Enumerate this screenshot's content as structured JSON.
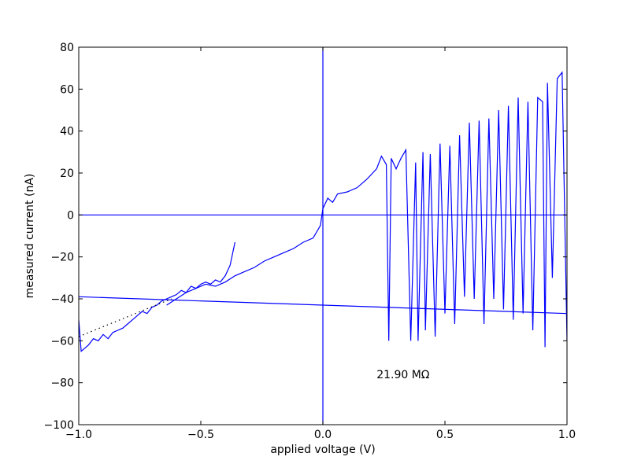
{
  "chart_data": {
    "type": "line",
    "xlabel": "applied voltage (V)",
    "ylabel": "measured current (nA)",
    "xlim": [
      -1,
      1
    ],
    "ylim": [
      -100,
      80
    ],
    "xticks": [
      {
        "value": -1,
        "label": "−1.0"
      },
      {
        "value": -0.5,
        "label": "−0.5"
      },
      {
        "value": 0,
        "label": "0.0"
      },
      0.5,
      {
        "value": 1,
        "label": "1.0"
      }
    ],
    "yticks": [
      {
        "value": -100,
        "label": "−100"
      },
      {
        "value": -80,
        "label": "−80"
      },
      {
        "value": -60,
        "label": "−60"
      },
      {
        "value": -40,
        "label": "−40"
      },
      {
        "value": -20,
        "label": "−20"
      },
      0,
      20,
      40,
      60,
      80
    ],
    "series": [
      {
        "color": "#0000ff",
        "style": "solid",
        "x": [
          -1,
          -0.99,
          -0.96,
          -0.94,
          -0.92,
          -0.9,
          -0.88,
          -0.86,
          -0.84,
          -0.82,
          -0.8,
          -0.78,
          -0.76,
          -0.74,
          -0.72,
          -0.7,
          -0.68,
          -0.66,
          -0.64,
          -0.62,
          -0.6,
          -0.58,
          -0.56,
          -0.54,
          -0.52,
          -0.5,
          -0.48,
          -0.46,
          -0.44,
          -0.42,
          -0.4,
          -0.38,
          -0.36
        ],
        "values": [
          -50,
          -65,
          -62,
          -59,
          -60,
          -57,
          -59,
          -56,
          -55,
          -54,
          -52,
          -50,
          -48,
          -46,
          -47,
          -44,
          -43,
          -41,
          -40,
          -39,
          -38,
          -36,
          -37,
          -34,
          -35,
          -33,
          -32,
          -33,
          -31,
          -32,
          -29,
          -24,
          -13
        ]
      },
      {
        "color": "#0000ff",
        "style": "solid",
        "x": [
          -0.64,
          -0.6,
          -0.56,
          -0.52,
          -0.48,
          -0.44,
          -0.4,
          -0.36,
          -0.32,
          -0.28,
          -0.24,
          -0.2,
          -0.16,
          -0.12,
          -0.08,
          -0.04,
          -0.01,
          0,
          0.02,
          0.04,
          0.06,
          0.1,
          0.14,
          0.18,
          0.22,
          0.24,
          0.26,
          0.27,
          0.28,
          0.3,
          0.32,
          0.34,
          0.36,
          0.38,
          0.39,
          0.41,
          0.42,
          0.44,
          0.46,
          0.48,
          0.5,
          0.52,
          0.54,
          0.56,
          0.58,
          0.6,
          0.62,
          0.64,
          0.66,
          0.68,
          0.7,
          0.72,
          0.74,
          0.76,
          0.78,
          0.8,
          0.82,
          0.84,
          0.86,
          0.88,
          0.9,
          0.91,
          0.92,
          0.94,
          0.96,
          0.98,
          1
        ],
        "values": [
          -43,
          -40,
          -37,
          -35,
          -33,
          -34,
          -32,
          -29,
          -27,
          -25,
          -22,
          -20,
          -18,
          -16,
          -13,
          -11,
          -5,
          3,
          8,
          6,
          10,
          11,
          13,
          17,
          22,
          28,
          24,
          -60,
          27,
          22,
          27,
          31,
          -60,
          25,
          -60,
          30,
          -55,
          29,
          -58,
          34,
          -47,
          33,
          -52,
          38,
          -39,
          44,
          -40,
          45,
          -52,
          46,
          -40,
          50,
          -45,
          52,
          -50,
          56,
          -47,
          54,
          -55,
          56,
          54,
          -63,
          63,
          -30,
          65,
          68,
          -60
        ]
      },
      {
        "color": "#0000ff",
        "style": "solid",
        "x": [
          -1,
          1
        ],
        "values": [
          -39,
          -47
        ]
      },
      {
        "color": "#000000",
        "style": "dotted",
        "x": [
          -1,
          -0.62
        ],
        "values": [
          -58,
          -40
        ]
      },
      {
        "color": "#0000ff",
        "style": "solid",
        "x": [
          -1,
          1
        ],
        "values": [
          0,
          0
        ]
      },
      {
        "color": "#0000ff",
        "style": "solid",
        "x": [
          0,
          0
        ],
        "values": [
          -100,
          80
        ]
      }
    ],
    "annotations": [
      {
        "text": "21.90 MΩ",
        "x": 0.22,
        "y": -76
      }
    ]
  }
}
